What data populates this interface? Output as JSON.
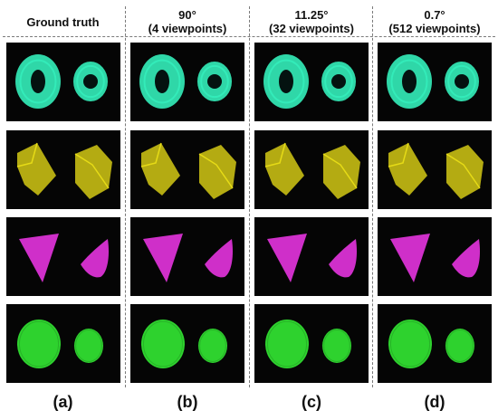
{
  "columns": [
    {
      "label": "(a)",
      "header_line1": "Ground truth",
      "header_line2": ""
    },
    {
      "label": "(b)",
      "header_line1": "90°",
      "header_line2": "(4 viewpoints)"
    },
    {
      "label": "(c)",
      "header_line1": "11.25°",
      "header_line2": "(32 viewpoints)"
    },
    {
      "label": "(d)",
      "header_line1": "0.7°",
      "header_line2": "(512 viewpoints)"
    }
  ],
  "rows": [
    {
      "shape": "torus",
      "color": "#2fd7a8"
    },
    {
      "shape": "cube",
      "color": "#b4ab12"
    },
    {
      "shape": "cone",
      "color": "#cf2fc9"
    },
    {
      "shape": "sphere",
      "color": "#2ed22e"
    }
  ],
  "colors": {
    "background": "#050505",
    "text": "#111111",
    "divider": "#7a7a7a"
  }
}
